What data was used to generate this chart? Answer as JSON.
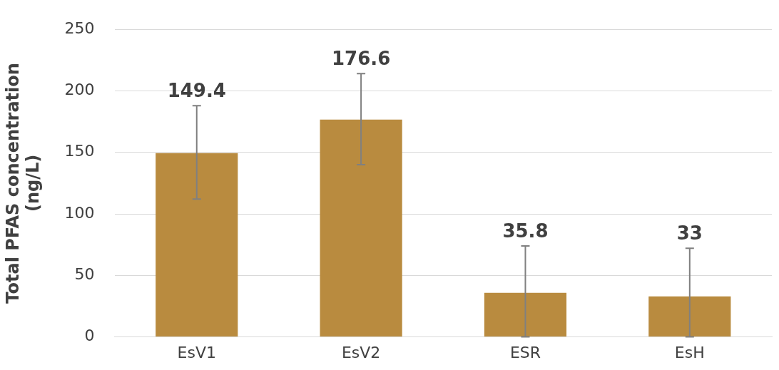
{
  "chart_data": {
    "type": "bar",
    "ylabel": "Total PFAS concentration (ng/L)",
    "categories": [
      "EsV1",
      "EsV2",
      "ESR",
      "EsH"
    ],
    "values": [
      149.4,
      176.6,
      35.8,
      33
    ],
    "errors": [
      [
        112,
        188
      ],
      [
        140,
        214
      ],
      [
        0,
        74
      ],
      [
        0,
        72
      ]
    ],
    "color": "#b98b3f",
    "data_labels": true,
    "ylim": [
      0,
      250
    ],
    "yticks": [
      0,
      50,
      100,
      150,
      200,
      250
    ],
    "grid": "y",
    "legend": false
  }
}
